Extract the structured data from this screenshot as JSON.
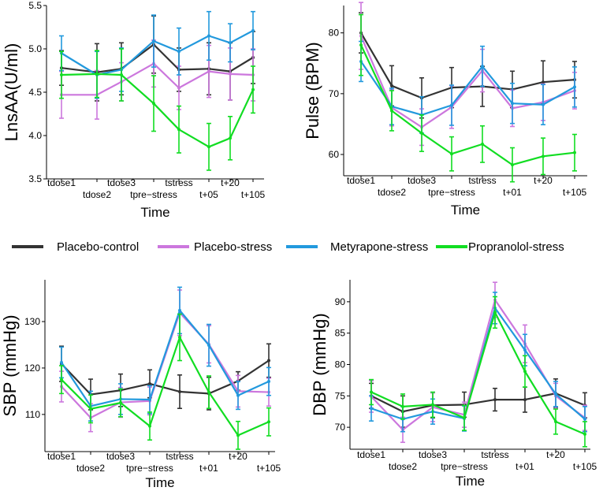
{
  "legend": [
    {
      "name": "Placebo-control",
      "color": "#333333"
    },
    {
      "name": "Placebo-stress",
      "color": "#cc77dd"
    },
    {
      "name": "Metyrapone-stress",
      "color": "#2299dd"
    },
    {
      "name": "Propranolol-stress",
      "color": "#11dd22"
    }
  ],
  "chart_data": [
    {
      "id": "lnsaa",
      "type": "line",
      "ylabel": "LnsAA(U/ml)",
      "xlabel": "Time",
      "ylim": [
        3.5,
        5.5
      ],
      "yticks": [
        "3.5",
        "4.0",
        "4.5",
        "5.0",
        "5.5"
      ],
      "categories": [
        "tdose1",
        "tdose2",
        "tdose3",
        "tpre−stress",
        "tstress",
        "t+05",
        "t+20",
        "t+105"
      ],
      "series": [
        {
          "name": "Placebo-control",
          "values": [
            4.78,
            4.73,
            4.77,
            5.05,
            4.76,
            4.77,
            4.74,
            4.9
          ],
          "err": [
            0.2,
            0.33,
            0.3,
            0.33,
            0.25,
            0.3,
            0.33,
            0.3
          ]
        },
        {
          "name": "Placebo-stress",
          "values": [
            4.47,
            4.47,
            4.62,
            4.83,
            4.55,
            4.74,
            4.71,
            4.7
          ],
          "err": [
            0.27,
            0.28,
            0.22,
            0.27,
            0.25,
            0.3,
            0.3,
            0.3
          ]
        },
        {
          "name": "Metyrapone-stress",
          "values": [
            4.95,
            4.7,
            4.76,
            5.09,
            4.97,
            5.15,
            5.07,
            5.21
          ],
          "err": [
            0.2,
            0.27,
            0.25,
            0.3,
            0.27,
            0.28,
            0.22,
            0.22
          ]
        },
        {
          "name": "Propranolol-stress",
          "values": [
            4.7,
            4.71,
            4.7,
            4.37,
            4.07,
            3.87,
            3.97,
            4.53
          ],
          "err": [
            0.27,
            0.27,
            0.3,
            0.32,
            0.27,
            0.27,
            0.25,
            0.27
          ]
        }
      ]
    },
    {
      "id": "pulse",
      "type": "line",
      "ylabel": "Pulse (BPM)",
      "xlabel": "Time",
      "ylim": [
        56.5,
        84.5
      ],
      "yticks": [
        "60",
        "70",
        "80"
      ],
      "categories": [
        "tdose1",
        "tdose2",
        "tdose3",
        "tpre−stress",
        "tstress",
        "t+01",
        "t+20",
        "t+105"
      ],
      "series": [
        {
          "name": "Placebo-control",
          "values": [
            80.0,
            71.3,
            69.3,
            71.0,
            71.2,
            70.7,
            71.9,
            72.3
          ],
          "err": [
            3.3,
            3.3,
            3.3,
            3.3,
            3.3,
            3.0,
            3.5,
            3.0
          ]
        },
        {
          "name": "Placebo-stress",
          "values": [
            79.5,
            67.7,
            64.5,
            67.8,
            73.8,
            67.6,
            68.6,
            70.5
          ],
          "err": [
            5.5,
            3.0,
            3.0,
            3.5,
            3.5,
            3.0,
            3.0,
            3.0
          ]
        },
        {
          "name": "Metyrapone-stress",
          "values": [
            75.3,
            67.9,
            66.5,
            68.1,
            74.5,
            68.4,
            68.2,
            71.1
          ],
          "err": [
            3.3,
            3.0,
            3.0,
            3.3,
            3.3,
            3.3,
            3.3,
            3.3
          ]
        },
        {
          "name": "Propranolol-stress",
          "values": [
            78.0,
            67.2,
            63.5,
            60.1,
            61.7,
            58.3,
            59.7,
            60.3
          ],
          "err": [
            5.0,
            3.3,
            3.0,
            2.8,
            3.0,
            2.8,
            3.0,
            3.0
          ]
        }
      ]
    },
    {
      "id": "sbp",
      "type": "line",
      "ylabel": "SBP (mmHg)",
      "xlabel": "Time",
      "ylim": [
        102,
        139
      ],
      "yticks": [
        "110",
        "120",
        "130"
      ],
      "categories": [
        "tdose1",
        "tdose2",
        "tdose3",
        "tpre−stress",
        "tstress",
        "t+01",
        "t+20",
        "t+105"
      ],
      "series": [
        {
          "name": "Placebo-control",
          "values": [
            120.9,
            114.3,
            115.2,
            116.6,
            114.9,
            114.5,
            117.2,
            121.6
          ],
          "err": [
            3.8,
            3.3,
            3.5,
            3.0,
            3.6,
            3.5,
            2.0,
            3.6
          ]
        },
        {
          "name": "Placebo-stress",
          "values": [
            116.0,
            109.3,
            112.6,
            112.9,
            131.9,
            125.1,
            115.0,
            114.8
          ],
          "err": [
            3.3,
            3.0,
            3.2,
            3.0,
            4.9,
            4.0,
            3.4,
            3.0
          ]
        },
        {
          "name": "Metyrapone-stress",
          "values": [
            121.2,
            111.8,
            113.3,
            113.2,
            132.4,
            124.9,
            114.1,
            117.1
          ],
          "err": [
            3.3,
            3.2,
            3.3,
            3.0,
            5.0,
            4.5,
            3.0,
            3.0
          ]
        },
        {
          "name": "Propranolol-stress",
          "values": [
            117.5,
            111.2,
            112.5,
            107.5,
            126.6,
            114.8,
            105.5,
            108.4
          ],
          "err": [
            3.0,
            3.0,
            3.0,
            3.0,
            5.0,
            3.5,
            3.0,
            3.0
          ]
        }
      ]
    },
    {
      "id": "dbp",
      "type": "line",
      "ylabel": "DBP (mmHg)",
      "xlabel": "Time",
      "ylim": [
        66.5,
        93.5
      ],
      "yticks": [
        "70",
        "75",
        "80",
        "85",
        "90"
      ],
      "categories": [
        "tdose1",
        "tdose2",
        "tdose3",
        "tpre−stress",
        "tstress",
        "t+01",
        "t+20",
        "t+105"
      ],
      "series": [
        {
          "name": "Placebo-control",
          "values": [
            75.0,
            72.5,
            73.5,
            73.6,
            74.4,
            74.4,
            75.4,
            73.5
          ],
          "err": [
            2.0,
            2.5,
            2.0,
            2.0,
            1.8,
            2.0,
            2.3,
            2.0
          ]
        },
        {
          "name": "Placebo-stress",
          "values": [
            74.9,
            69.6,
            73.2,
            72.0,
            90.3,
            83.3,
            75.0,
            71.5
          ],
          "err": [
            2.5,
            2.0,
            2.3,
            2.0,
            2.8,
            3.0,
            2.0,
            2.0
          ]
        },
        {
          "name": "Metyrapone-stress",
          "values": [
            73.0,
            71.3,
            72.5,
            71.4,
            89.0,
            82.3,
            75.3,
            71.3
          ],
          "err": [
            2.0,
            2.0,
            2.0,
            2.0,
            2.5,
            2.5,
            2.0,
            2.0
          ]
        },
        {
          "name": "Propranolol-stress",
          "values": [
            75.6,
            73.3,
            73.6,
            71.5,
            88.3,
            78.9,
            70.9,
            68.9
          ],
          "err": [
            2.0,
            2.0,
            2.0,
            2.0,
            2.5,
            2.5,
            2.0,
            2.0
          ]
        }
      ]
    }
  ]
}
